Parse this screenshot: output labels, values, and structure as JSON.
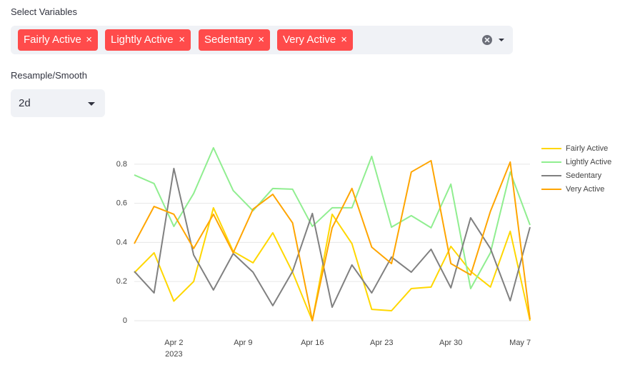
{
  "ui": {
    "select_label": "Select Variables",
    "resample_label": "Resample/Smooth",
    "resample_value": "2d",
    "tag_close": "×"
  },
  "chart_data": {
    "type": "line",
    "x": [
      "2023-03-29",
      "2023-03-31",
      "2023-04-02",
      "2023-04-04",
      "2023-04-06",
      "2023-04-08",
      "2023-04-10",
      "2023-04-12",
      "2023-04-14",
      "2023-04-16",
      "2023-04-18",
      "2023-04-20",
      "2023-04-22",
      "2023-04-24",
      "2023-04-26",
      "2023-04-28",
      "2023-04-30",
      "2023-05-02",
      "2023-05-04",
      "2023-05-06",
      "2023-05-08"
    ],
    "series": [
      {
        "name": "Fairly Active",
        "color": "#FFD700",
        "values": [
          0.245,
          0.347,
          0.1,
          0.2,
          0.577,
          0.354,
          0.296,
          0.449,
          0.248,
          0,
          0.544,
          0.394,
          0.058,
          0.051,
          0.164,
          0.172,
          0.38,
          0.252,
          0.172,
          0.457,
          0
        ]
      },
      {
        "name": "Lightly Active",
        "color": "#90EE90",
        "values": [
          0.745,
          0.701,
          0.482,
          0.65,
          0.884,
          0.665,
          0.562,
          0.676,
          0.672,
          0.482,
          0.577,
          0.577,
          0.84,
          0.478,
          0.537,
          0.475,
          0.698,
          0.164,
          0.347,
          0.76,
          0.489
        ]
      },
      {
        "name": "Sedentary",
        "color": "#808080",
        "values": [
          0.252,
          0.142,
          0.778,
          0.336,
          0.157,
          0.343,
          0.248,
          0.077,
          0.252,
          0.548,
          0.069,
          0.285,
          0.142,
          0.325,
          0.248,
          0.365,
          0.168,
          0.526,
          0.369,
          0.102,
          0.478
        ]
      },
      {
        "name": "Very Active",
        "color": "#FFA500",
        "values": [
          0.394,
          0.584,
          0.544,
          0.369,
          0.544,
          0.347,
          0.57,
          0.646,
          0.5,
          0,
          0.475,
          0.676,
          0.376,
          0.292,
          0.76,
          0.818,
          0.292,
          0.234,
          0.559,
          0.811,
          0.007
        ]
      }
    ],
    "xlim": [
      "2023-03-29",
      "2023-05-08"
    ],
    "xticks": [
      {
        "value": "2023-04-02",
        "label": "Apr 2"
      },
      {
        "value": "2023-04-09",
        "label": "Apr 9"
      },
      {
        "value": "2023-04-16",
        "label": "Apr 16"
      },
      {
        "value": "2023-04-23",
        "label": "Apr 23"
      },
      {
        "value": "2023-04-30",
        "label": "Apr 30"
      },
      {
        "value": "2023-05-07",
        "label": "May 7"
      }
    ],
    "xtick_year": "2023",
    "ylim": [
      -0.044,
      0.92
    ],
    "yticks": [
      0,
      0.2,
      0.4,
      0.6,
      0.8
    ],
    "grid": true
  }
}
